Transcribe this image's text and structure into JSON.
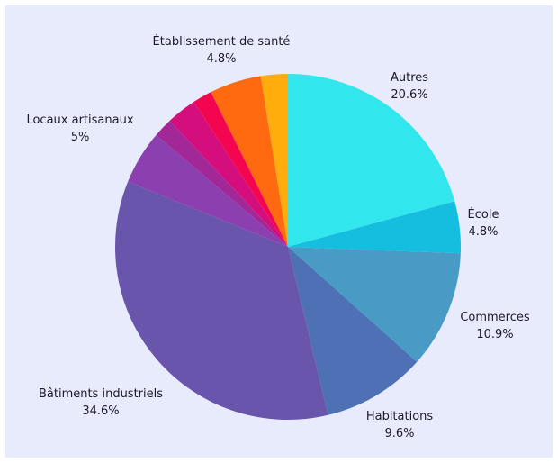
{
  "chart_data": {
    "type": "pie",
    "title": "",
    "slices": [
      {
        "label": "Autres",
        "value": 20.6,
        "value_label": "20.6%",
        "color": "#31e6ec"
      },
      {
        "label": "École",
        "value": 4.8,
        "value_label": "4.8%",
        "color": "#15bede"
      },
      {
        "label": "Commerces",
        "value": 10.9,
        "value_label": "10.9%",
        "color": "#4a9ac6"
      },
      {
        "label": "Habitations",
        "value": 9.6,
        "value_label": "9.6%",
        "color": "#4d71b4"
      },
      {
        "label": "Bâtiments industriels",
        "value": 34.6,
        "value_label": "34.6%",
        "color": "#6a55ad"
      },
      {
        "label": "Locaux artisanaux",
        "value": 5.0,
        "value_label": "5%",
        "color": "#8c3fae"
      },
      {
        "label": "",
        "value": 1.8,
        "value_label": "",
        "color": "#a22797"
      },
      {
        "label": "",
        "value": 2.8,
        "value_label": "",
        "color": "#d40f7d"
      },
      {
        "label": "",
        "value": 1.8,
        "value_label": "",
        "color": "#f3064f"
      },
      {
        "label": "Établissement de santé",
        "value": 4.8,
        "value_label": "4.8%",
        "color": "#ff6a10"
      },
      {
        "label": "",
        "value": 2.5,
        "value_label": "",
        "color": "#ffad0d"
      }
    ]
  }
}
